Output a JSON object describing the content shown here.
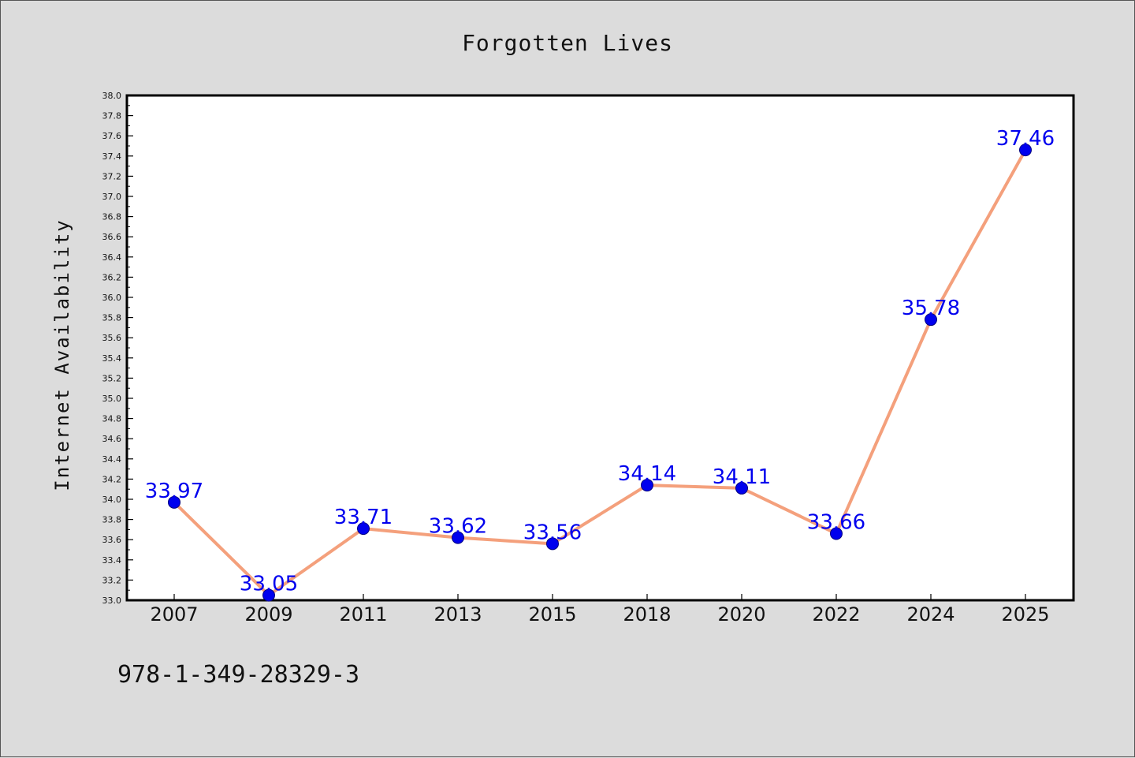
{
  "chart_data": {
    "type": "line",
    "title": "Forgotten Lives",
    "xlabel": "",
    "ylabel": "Internet Availability",
    "categories": [
      "2007",
      "2009",
      "2011",
      "2013",
      "2015",
      "2018",
      "2020",
      "2022",
      "2024",
      "2025"
    ],
    "series": [
      {
        "values": [
          33.97,
          33.05,
          33.71,
          33.62,
          33.56,
          34.14,
          34.11,
          33.66,
          35.78,
          37.46
        ],
        "labels": [
          "33.97",
          "33.05",
          "33.71",
          "33.62",
          "33.56",
          "34.14",
          "34.11",
          "33.66",
          "35.78",
          "37.46"
        ]
      }
    ],
    "ylim": [
      33.0,
      38.0
    ],
    "ytick_step": 0.2,
    "grid": false,
    "legend": "none",
    "colors": {
      "line": "#f4a07c",
      "marker": "#0000ee",
      "data_label": "#0000ee"
    }
  },
  "footer": {
    "code": "978-1-349-28329-3"
  }
}
